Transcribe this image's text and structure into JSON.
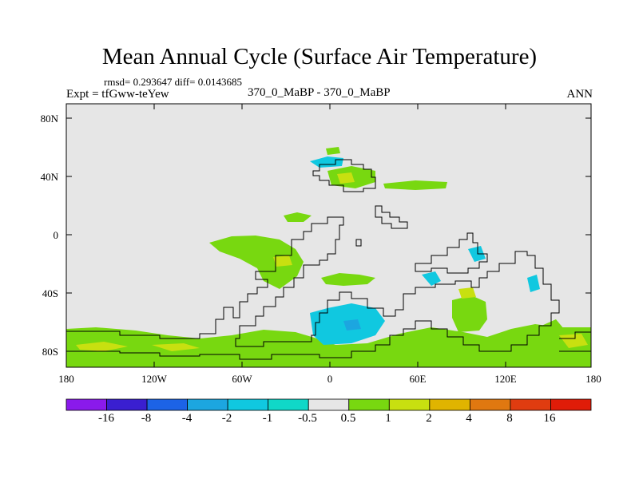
{
  "title": "Mean Annual Cycle (Surface Air Temperature)",
  "stats": "rmsd= 0.293647 diff= 0.0143685",
  "expt": "Expt = tfGww-teYew",
  "difference_label": "370_0_MaBP - 370_0_MaBP",
  "season": "ANN",
  "lat_labels": [
    "80N",
    "40N",
    "0",
    "40S",
    "80S"
  ],
  "lon_labels": [
    "180",
    "120W",
    "60W",
    "0",
    "60E",
    "120E",
    "180"
  ],
  "colorbar": {
    "labels": [
      "-16",
      "-8",
      "-4",
      "-2",
      "-1",
      "-0.5",
      "0.5",
      "1",
      "2",
      "4",
      "8",
      "16"
    ],
    "colors": [
      "#8a1aeb",
      "#3a1fd0",
      "#1c63e6",
      "#1ca6e0",
      "#10c8e0",
      "#10d8c8",
      "#e6e6e6",
      "#78d810",
      "#c8e010",
      "#e0b400",
      "#e07810",
      "#e03c10",
      "#e01c08"
    ]
  },
  "colors": {
    "background": "#e6e6e6",
    "positive_small": "#78d810",
    "positive_med": "#c8e010",
    "negative_small": "#10c8e0",
    "negative_med": "#1ca6e0"
  }
}
